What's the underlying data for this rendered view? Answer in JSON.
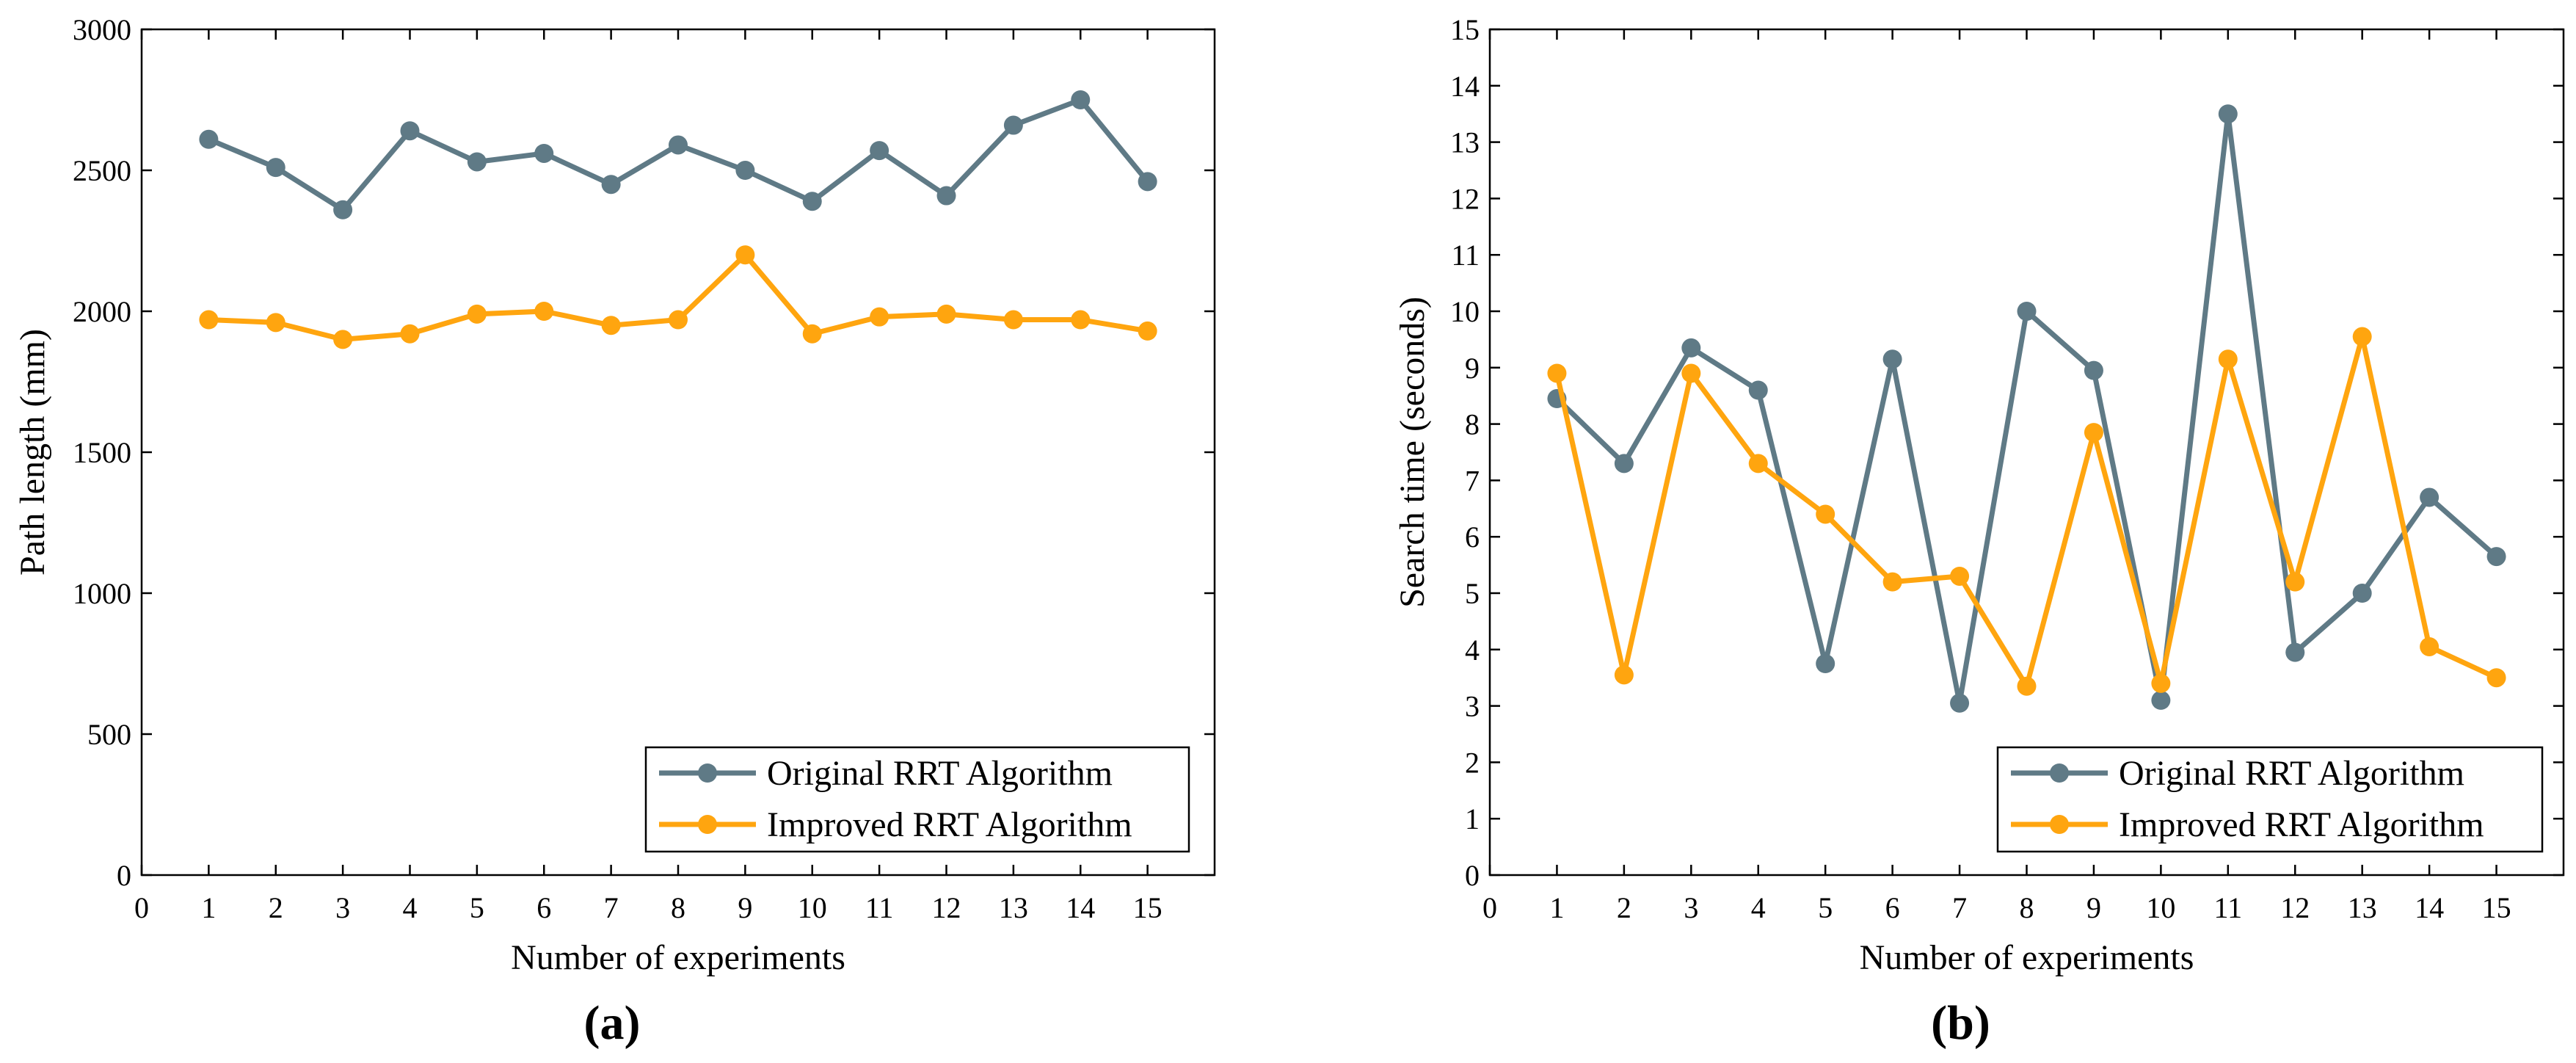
{
  "chart_data": [
    {
      "type": "line",
      "panel_label": "(a)",
      "xlabel": "Number of experiments",
      "ylabel": "Path length (mm)",
      "xlim": [
        0,
        16
      ],
      "ylim": [
        0,
        3000
      ],
      "xticks": [
        "0",
        "1",
        "2",
        "3",
        "4",
        "5",
        "6",
        "7",
        "8",
        "9",
        "10",
        "11",
        "12",
        "13",
        "14",
        "15"
      ],
      "yticks": [
        "0",
        "500",
        "1000",
        "1500",
        "2000",
        "2500",
        "3000"
      ],
      "grid": false,
      "legend_position": "bottom-right",
      "x": [
        1,
        2,
        3,
        4,
        5,
        6,
        7,
        8,
        9,
        10,
        11,
        12,
        13,
        14,
        15
      ],
      "series": [
        {
          "name": "Original RRT Algorithm",
          "color": "#5f7a86",
          "values": [
            2610,
            2510,
            2360,
            2640,
            2530,
            2560,
            2450,
            2590,
            2500,
            2390,
            2570,
            2410,
            2660,
            2750,
            2460
          ]
        },
        {
          "name": "Improved RRT Algorithm",
          "color": "#ffa50f",
          "values": [
            1970,
            1960,
            1900,
            1920,
            1990,
            2000,
            1950,
            1970,
            2200,
            1920,
            1980,
            1990,
            1970,
            1970,
            1930
          ]
        }
      ]
    },
    {
      "type": "line",
      "panel_label": "(b)",
      "xlabel": "Number of experiments",
      "ylabel": "Search time (seconds)",
      "xlim": [
        0,
        16
      ],
      "ylim": [
        0,
        15
      ],
      "xticks": [
        "0",
        "1",
        "2",
        "3",
        "4",
        "5",
        "6",
        "7",
        "8",
        "9",
        "10",
        "11",
        "12",
        "13",
        "14",
        "15"
      ],
      "yticks": [
        "0",
        "1",
        "2",
        "3",
        "4",
        "5",
        "6",
        "7",
        "8",
        "9",
        "10",
        "11",
        "12",
        "13",
        "14",
        "15"
      ],
      "grid": false,
      "legend_position": "bottom-right",
      "x": [
        1,
        2,
        3,
        4,
        5,
        6,
        7,
        8,
        9,
        10,
        11,
        12,
        13,
        14,
        15
      ],
      "series": [
        {
          "name": "Original RRT Algorithm",
          "color": "#5f7a86",
          "values": [
            8.45,
            7.3,
            9.35,
            8.6,
            3.75,
            9.15,
            3.05,
            10.0,
            8.95,
            3.1,
            13.5,
            3.95,
            5.0,
            6.7,
            5.65
          ]
        },
        {
          "name": "Improved RRT Algorithm",
          "color": "#ffa50f",
          "values": [
            8.9,
            3.55,
            8.9,
            7.3,
            6.4,
            5.2,
            5.3,
            3.35,
            7.85,
            3.4,
            9.15,
            5.2,
            9.55,
            4.05,
            3.5
          ]
        }
      ]
    }
  ]
}
